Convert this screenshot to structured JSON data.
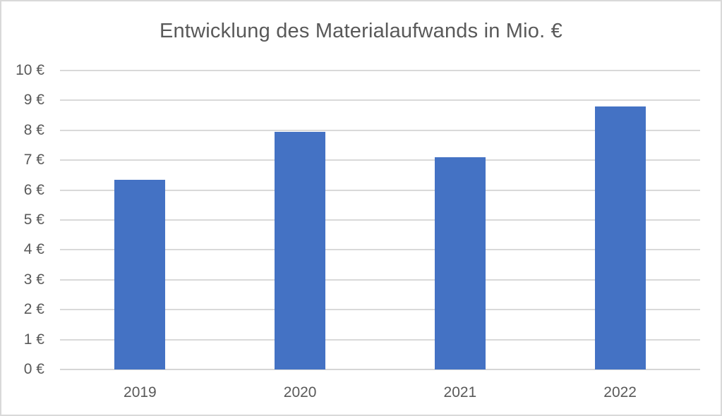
{
  "window": {
    "background": "#ffffff",
    "border_color": "#d9d9d9"
  },
  "chart_data": {
    "type": "bar",
    "title": "Entwicklung des Materialaufwands in Mio. €",
    "categories": [
      "2019",
      "2020",
      "2021",
      "2022"
    ],
    "values": [
      6.35,
      7.95,
      7.1,
      8.8
    ],
    "xlabel": "",
    "ylabel": "",
    "ylim": [
      0,
      10
    ],
    "ytick_step": 1,
    "yticks": [
      "0 €",
      "1 €",
      "2 €",
      "3 €",
      "4 €",
      "5 €",
      "6 €",
      "7 €",
      "8 €",
      "9 €",
      "10 €"
    ],
    "grid": true,
    "legend": "none",
    "colors": {
      "bar": "#4472C4",
      "gridline": "#d9d9d9",
      "axis_line": "#d6d6d6",
      "text": "#595959",
      "title": "#595959"
    }
  }
}
